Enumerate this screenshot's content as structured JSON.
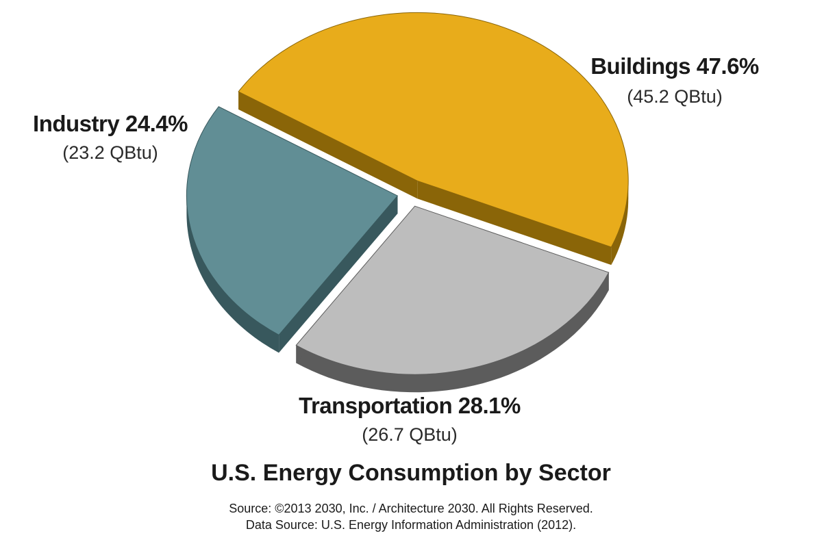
{
  "chart_data": {
    "type": "pie",
    "title": "U.S. Energy Consumption by Sector",
    "slices": [
      {
        "label": "Buildings 47.6%",
        "sub": "(45.2 QBtu)",
        "percent": 47.6,
        "qbtu": 45.2,
        "color": "#e8ac1b",
        "side_color": "#8a6508"
      },
      {
        "label": "Transportation 28.1%",
        "sub": "(26.7 QBtu)",
        "percent": 28.1,
        "qbtu": 26.7,
        "color": "#bdbdbd",
        "side_color": "#5c5c5c"
      },
      {
        "label": "Industry 24.4%",
        "sub": "(23.2 QBtu)",
        "percent": 24.4,
        "qbtu": 23.2,
        "color": "#618e95",
        "side_color": "#38585d"
      }
    ]
  },
  "source": {
    "line1": "Source: ©2013 2030, Inc. / Architecture 2030. All Rights Reserved.",
    "line2": "Data Source: U.S. Energy Information Administration (2012)."
  }
}
